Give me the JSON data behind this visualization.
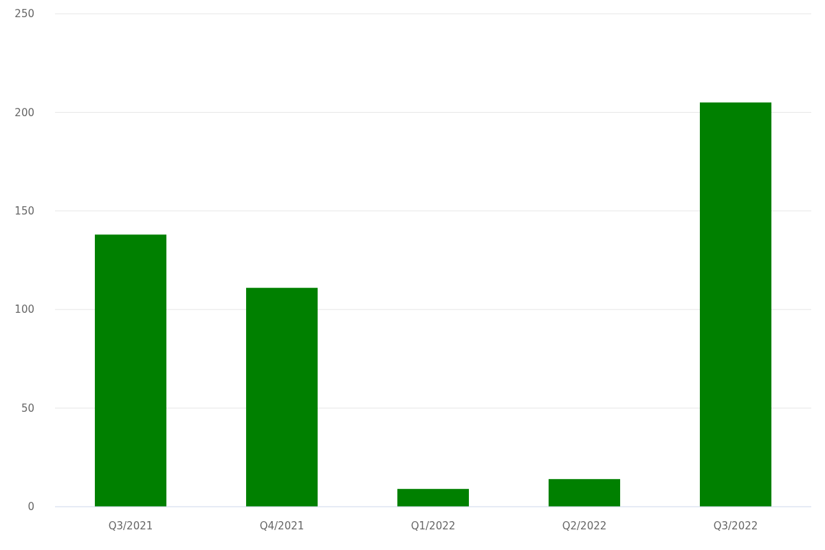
{
  "chart_data": {
    "type": "bar",
    "categories": [
      "Q3/2021",
      "Q4/2021",
      "Q1/2022",
      "Q2/2022",
      "Q3/2022"
    ],
    "values": [
      138,
      111,
      9,
      14,
      205
    ],
    "color": "#008000",
    "ylim": [
      0,
      250
    ],
    "yticks": [
      0,
      50,
      100,
      150,
      200,
      250
    ],
    "grid": "y"
  }
}
